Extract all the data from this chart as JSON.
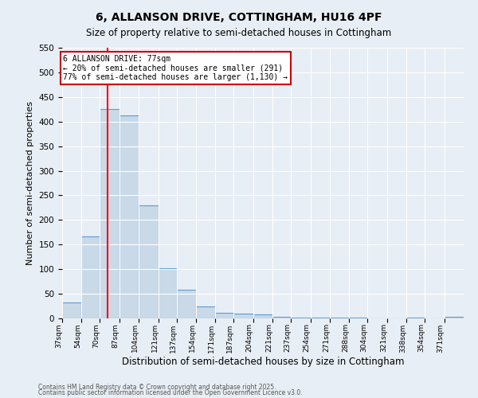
{
  "title": "6, ALLANSON DRIVE, COTTINGHAM, HU16 4PF",
  "subtitle": "Size of property relative to semi-detached houses in Cottingham",
  "xlabel": "Distribution of semi-detached houses by size in Cottingham",
  "ylabel": "Number of semi-detached properties",
  "bin_edges": [
    37,
    54,
    70,
    87,
    104,
    121,
    137,
    154,
    171,
    187,
    204,
    221,
    237,
    254,
    271,
    288,
    304,
    321,
    338,
    354,
    371,
    388
  ],
  "bin_labels": [
    "37sqm",
    "54sqm",
    "70sqm",
    "87sqm",
    "104sqm",
    "121sqm",
    "137sqm",
    "154sqm",
    "171sqm",
    "187sqm",
    "204sqm",
    "221sqm",
    "237sqm",
    "254sqm",
    "271sqm",
    "288sqm",
    "304sqm",
    "321sqm",
    "338sqm",
    "354sqm",
    "371sqm"
  ],
  "counts": [
    33,
    167,
    425,
    413,
    230,
    102,
    58,
    25,
    11,
    9,
    8,
    4,
    2,
    1,
    1,
    1,
    0,
    0,
    1,
    0,
    3
  ],
  "bar_color": "#c9d9e8",
  "bar_edge_color": "#5b9bd5",
  "red_line_x": 77,
  "ylim": [
    0,
    550
  ],
  "annotation_text": "6 ALLANSON DRIVE: 77sqm\n← 20% of semi-detached houses are smaller (291)\n77% of semi-detached houses are larger (1,130) →",
  "annotation_box_color": "#ffffff",
  "annotation_box_edge_color": "#cc0000",
  "footer_line1": "Contains HM Land Registry data © Crown copyright and database right 2025.",
  "footer_line2": "Contains public sector information licensed under the Open Government Licence v3.0.",
  "background_color": "#e8eef5",
  "title_fontsize": 10,
  "subtitle_fontsize": 8.5,
  "ylabel_fontsize": 8,
  "xlabel_fontsize": 8.5
}
